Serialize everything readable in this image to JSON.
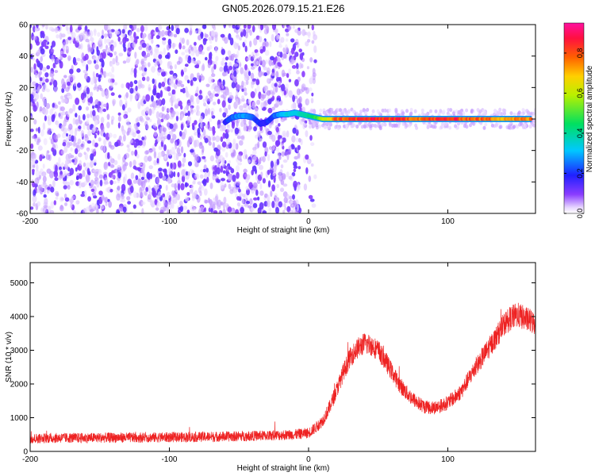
{
  "chart_data": [
    {
      "type": "scatter",
      "title": "GN05.2026.079.15.21.E26",
      "xlabel": "Height of straight line (km)",
      "ylabel": "Frequency (Hz)",
      "xlim": [
        -200,
        163
      ],
      "ylim": [
        -60,
        60
      ],
      "xticks": [
        -200,
        -100,
        0,
        100
      ],
      "yticks": [
        -60,
        -40,
        -20,
        0,
        20,
        40,
        60
      ],
      "colorbar": {
        "label": "Normalized spectral amplitude",
        "range": [
          0,
          0.95
        ],
        "ticks": [
          0.0,
          0.2,
          0.4,
          0.6,
          0.8
        ],
        "colormap": "rainbow (white-violet-blue-cyan-green-yellow-orange-red-magenta)"
      },
      "series": [
        {
          "description_note": "",
          "noise_region": {
            "x": [
              -200,
              -5
            ],
            "y": [
              -60,
              60
            ],
            "amplitude": [
              0.0,
              0.15
            ]
          },
          "ridge": {
            "x": [
              -60,
              -55,
              -50,
              -45,
              -40,
              -35,
              -30,
              -25,
              -20,
              -15,
              -10,
              -5,
              0,
              5,
              10,
              20,
              40,
              60,
              80,
              100,
              120,
              140,
              160
            ],
            "y": [
              -2,
              1,
              2,
              2,
              1,
              -3,
              -2,
              2,
              3,
              3,
              4,
              3,
              2,
              1,
              0,
              0,
              0,
              0,
              0,
              0,
              0,
              0,
              0
            ],
            "amplitude": [
              0.2,
              0.25,
              0.3,
              0.3,
              0.25,
              0.2,
              0.2,
              0.25,
              0.3,
              0.35,
              0.35,
              0.4,
              0.45,
              0.5,
              0.6,
              0.85,
              0.9,
              0.9,
              0.85,
              0.9,
              0.85,
              0.8,
              0.8
            ]
          }
        }
      ]
    },
    {
      "type": "line",
      "title": "",
      "xlabel": "Height of straight line (km)",
      "ylabel": "SNR (10 * v/v)",
      "xlim": [
        -200,
        163
      ],
      "ylim": [
        0,
        5600
      ],
      "xticks": [
        -200,
        -100,
        0,
        100
      ],
      "yticks": [
        0,
        1000,
        2000,
        3000,
        4000,
        5000
      ],
      "color": "#ee2222",
      "series": [
        {
          "name": "",
          "x": [
            -200,
            -180,
            -160,
            -140,
            -120,
            -100,
            -80,
            -60,
            -40,
            -20,
            -10,
            0,
            5,
            10,
            15,
            20,
            25,
            30,
            35,
            40,
            45,
            50,
            55,
            60,
            65,
            70,
            75,
            80,
            85,
            90,
            95,
            100,
            105,
            110,
            115,
            120,
            125,
            130,
            135,
            140,
            145,
            150,
            155,
            160,
            163
          ],
          "y": [
            380,
            400,
            400,
            410,
            410,
            420,
            430,
            440,
            460,
            480,
            500,
            550,
            700,
            900,
            1300,
            1800,
            2350,
            2800,
            3050,
            3200,
            3150,
            3000,
            2700,
            2350,
            2000,
            1750,
            1550,
            1400,
            1300,
            1300,
            1350,
            1450,
            1600,
            1800,
            2150,
            2500,
            2800,
            3100,
            3400,
            3750,
            3950,
            4050,
            3950,
            3850,
            3800
          ],
          "noise_amplitude": 250
        }
      ]
    }
  ]
}
